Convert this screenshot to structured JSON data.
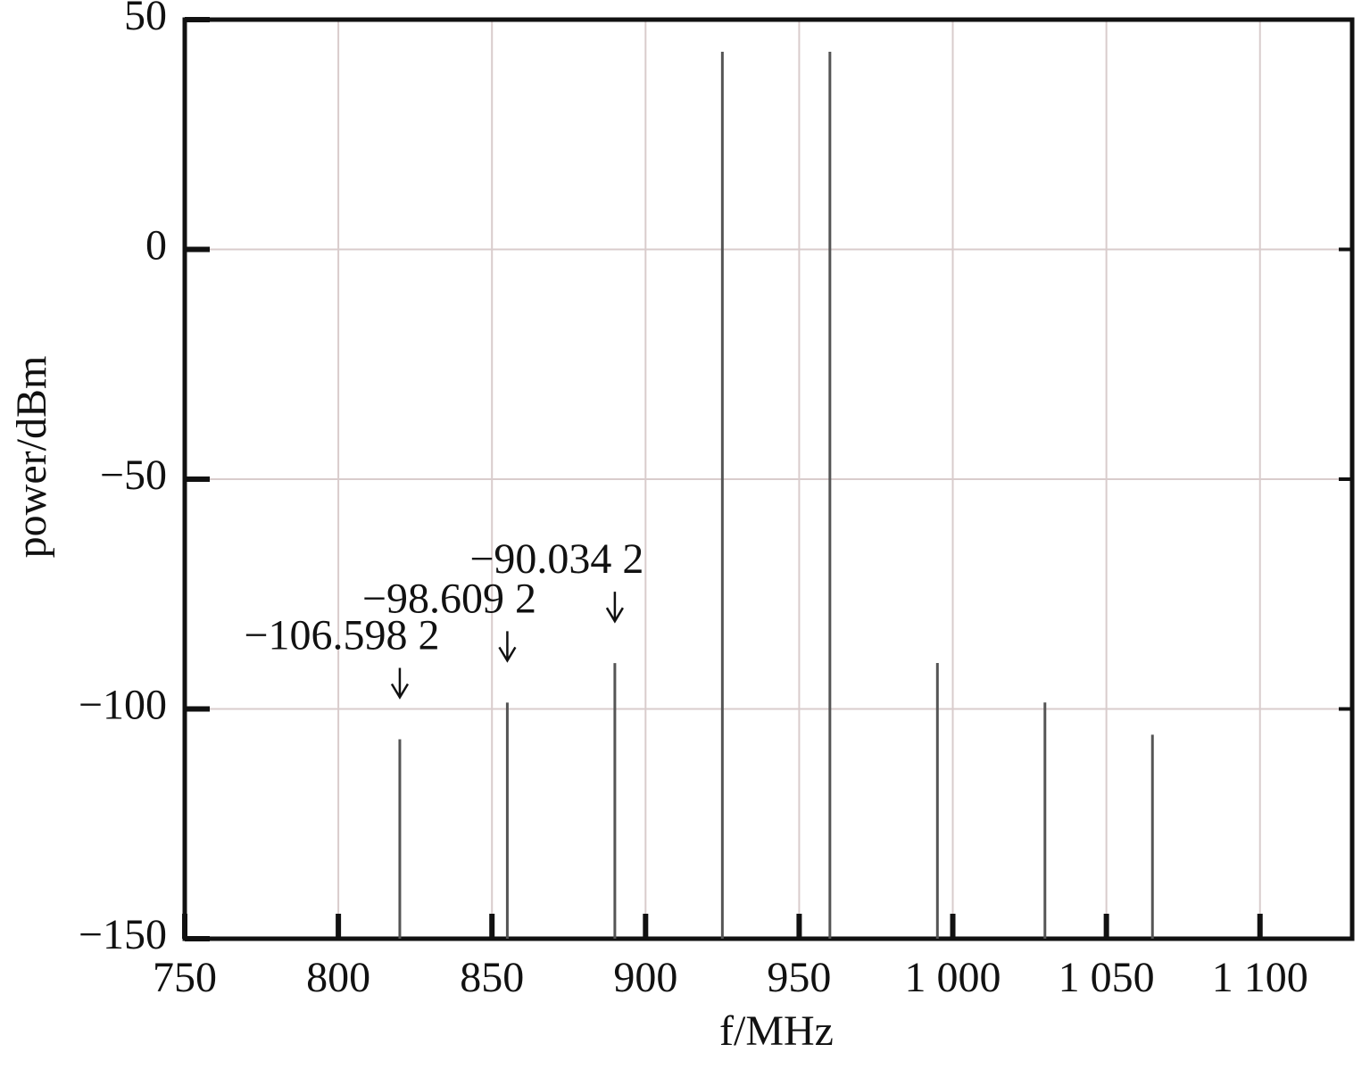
{
  "chart_data": {
    "type": "stem",
    "xlabel": "f/MHz",
    "ylabel": "power/dBm",
    "x": [
      820,
      855,
      890,
      925,
      960,
      995,
      1030,
      1065
    ],
    "values": [
      -106.5982,
      -98.6092,
      -90.0342,
      43,
      43,
      -90,
      -98.6,
      -105.6
    ],
    "value_labels": [
      "−106.598 2",
      "−98.609 2",
      "−90.034 2",
      null,
      null,
      null,
      null,
      null
    ],
    "color": "#555555",
    "xlim": [
      750,
      1130
    ],
    "ylim": [
      -150,
      50
    ],
    "xticks": [
      750,
      800,
      850,
      900,
      950,
      {
        "value": 1000,
        "label": "1 000"
      },
      {
        "value": 1050,
        "label": "1 050"
      },
      {
        "value": 1100,
        "label": "1 100"
      }
    ],
    "yticks": [
      {
        "value": -150,
        "label": "−150"
      },
      {
        "value": -100,
        "label": "−100"
      },
      {
        "value": -50,
        "label": "−50"
      },
      0,
      50
    ],
    "grid": true
  }
}
